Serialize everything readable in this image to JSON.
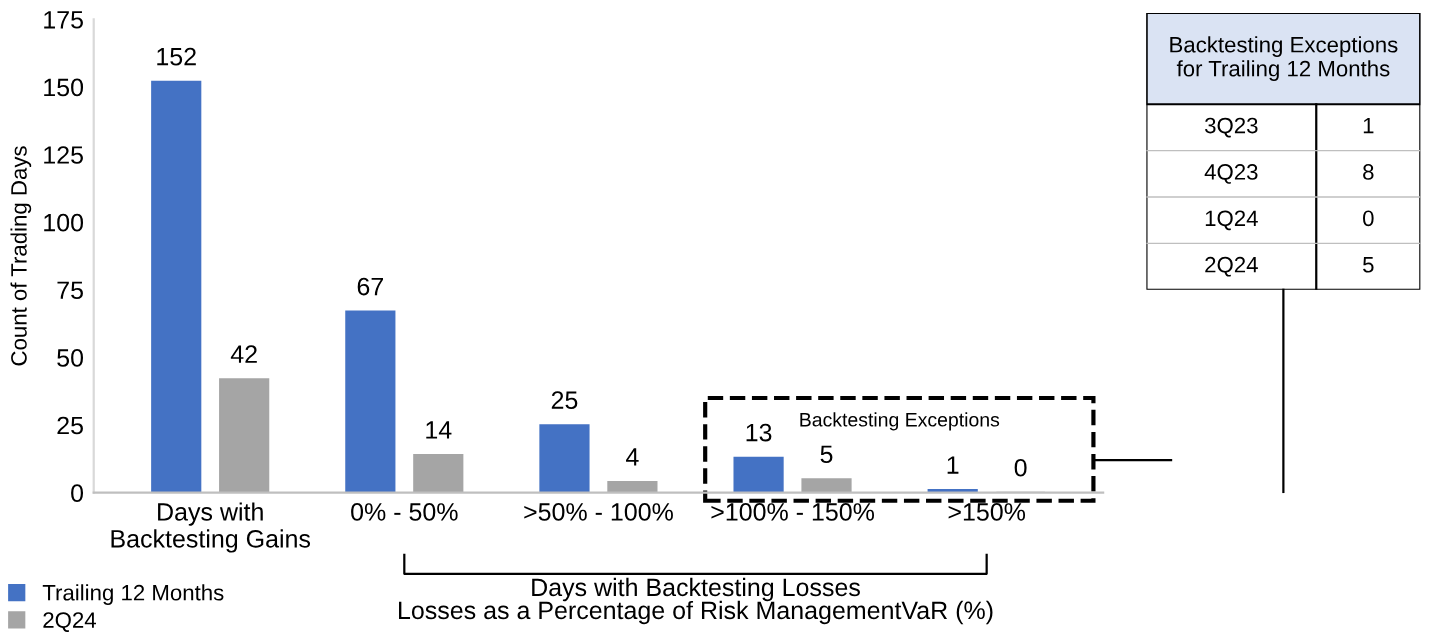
{
  "chart_data": [
    {
      "type": "bar",
      "categories": [
        "Days with\nBacktesting Gains",
        "0% - 50%",
        ">50% - 100%",
        ">100% - 150%",
        ">150%"
      ],
      "series": [
        {
          "name": "Trailing 12 Months",
          "color": "#4472c4",
          "values": [
            152,
            67,
            25,
            13,
            1
          ]
        },
        {
          "name": "2Q24",
          "color": "#a5a5a5",
          "values": [
            42,
            14,
            4,
            5,
            0
          ]
        }
      ],
      "ylabel": "Count of Trading Days",
      "ylim": [
        0,
        175
      ],
      "yticks": [
        0,
        25,
        50,
        75,
        100,
        125,
        150,
        175
      ],
      "grid": false,
      "legend": "bottom left",
      "data_labels": true,
      "annotations": [
        "Backtesting Exceptions",
        "Days with Backtesting Losses",
        "Losses as a Percentage of Risk ManagementVaR (%)"
      ]
    },
    {
      "type": "other",
      "title": "Backtesting Exceptions\nfor Trailing 12 Months",
      "categories": [
        "3Q23",
        "4Q23",
        "1Q24",
        "2Q24"
      ],
      "values": [
        1,
        8,
        0,
        5
      ],
      "data_labels": true
    }
  ]
}
